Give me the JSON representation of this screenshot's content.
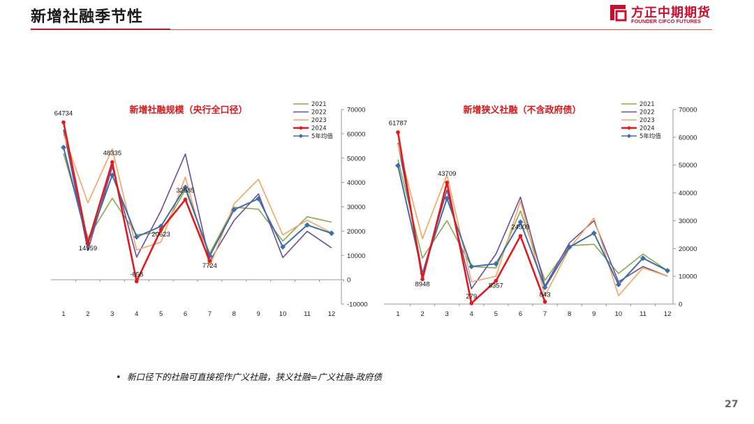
{
  "header": {
    "title": "新增社融季节性",
    "logo_cn": "方正中期期货",
    "logo_en": "FOUNDER CIFCO FUTURES",
    "accent": "#c8102e"
  },
  "footer": {
    "note": "新口径下的社融可直接视作广义社融，狭义社融=广义社融-政府债",
    "page_number": "27"
  },
  "chart_data": [
    {
      "type": "line",
      "title": "新增社融规模（央行全口径）",
      "categories": [
        "1",
        "2",
        "3",
        "4",
        "5",
        "6",
        "7",
        "8",
        "9",
        "10",
        "11",
        "12"
      ],
      "ylim": [
        -10000,
        70000
      ],
      "yticks": [
        -10000,
        0,
        10000,
        20000,
        30000,
        40000,
        50000,
        60000,
        70000
      ],
      "ytick_labels": [
        "-10000",
        "0",
        "10000",
        "20000",
        "30000",
        "40000",
        "50000",
        "60000",
        "70000"
      ],
      "legend_position": "top-right",
      "series": [
        {
          "name": "2021",
          "color": "#8aa850",
          "values": [
            51900,
            17100,
            33500,
            18500,
            19500,
            37000,
            10800,
            29800,
            29000,
            15900,
            25900,
            23700
          ]
        },
        {
          "name": "2022",
          "color": "#6a4c9c",
          "values": [
            61700,
            12000,
            46500,
            9300,
            28400,
            51700,
            7600,
            24400,
            35300,
            9100,
            19900,
            13100
          ]
        },
        {
          "name": "2023",
          "color": "#f4a460",
          "values": [
            59900,
            31600,
            53800,
            12200,
            15500,
            42200,
            5400,
            31200,
            41300,
            18400,
            24500,
            19300
          ]
        },
        {
          "name": "2024",
          "color": "#e31a1c",
          "values": [
            64734,
            14959,
            48335,
            -658,
            20623,
            32985,
            7724,
            null,
            null,
            null,
            null,
            null
          ]
        },
        {
          "name": "5年均值",
          "color": "#3d6ea8",
          "values": [
            54400,
            14800,
            43000,
            17600,
            22000,
            38000,
            9800,
            28800,
            33300,
            13500,
            22500,
            19100
          ]
        }
      ],
      "data_labels": [
        {
          "x": "1",
          "value": 64734,
          "text": "64734"
        },
        {
          "x": "2",
          "value": 14959,
          "text": "14959"
        },
        {
          "x": "3",
          "value": 48335,
          "text": "48335"
        },
        {
          "x": "4",
          "value": -658,
          "text": "-658"
        },
        {
          "x": "5",
          "value": 20623,
          "text": "20623"
        },
        {
          "x": "6",
          "value": 32985,
          "text": "32985"
        },
        {
          "x": "7",
          "value": 7724,
          "text": "7724"
        }
      ]
    },
    {
      "type": "line",
      "title": "新增狭义社融（不含政府债）",
      "categories": [
        "1",
        "2",
        "3",
        "4",
        "5",
        "6",
        "7",
        "8",
        "9",
        "10",
        "11",
        "12"
      ],
      "ylim": [
        0,
        70000
      ],
      "yticks": [
        0,
        10000,
        20000,
        30000,
        40000,
        50000,
        60000,
        70000
      ],
      "ytick_labels": [
        "0",
        "10000",
        "20000",
        "30000",
        "40000",
        "50000",
        "60000",
        "70000"
      ],
      "legend_position": "top-right",
      "series": [
        {
          "name": "2021",
          "color": "#8aa850",
          "values": [
            52000,
            16500,
            30000,
            13500,
            13000,
            33500,
            8500,
            21000,
            21500,
            11000,
            18000,
            12000
          ]
        },
        {
          "name": "2022",
          "color": "#6a4c9c",
          "values": [
            58000,
            11000,
            41000,
            5500,
            18000,
            38500,
            6500,
            22000,
            30000,
            8000,
            13500,
            10000
          ]
        },
        {
          "name": "2023",
          "color": "#f4a460",
          "values": [
            57500,
            23500,
            46500,
            8000,
            10000,
            37000,
            3000,
            20000,
            31000,
            3000,
            13000,
            10000
          ]
        },
        {
          "name": "2024",
          "color": "#e31a1c",
          "values": [
            61787,
            8948,
            43709,
            279,
            8357,
            24509,
            843,
            null,
            null,
            null,
            null,
            null
          ]
        },
        {
          "name": "5年均值",
          "color": "#3d6ea8",
          "values": [
            49800,
            11000,
            38000,
            13500,
            14500,
            29500,
            6000,
            20500,
            25500,
            7000,
            16500,
            12000
          ]
        }
      ],
      "data_labels": [
        {
          "x": "1",
          "value": 61787,
          "text": "61787"
        },
        {
          "x": "2",
          "value": 8948,
          "text": "8948"
        },
        {
          "x": "3",
          "value": 43709,
          "text": "43709"
        },
        {
          "x": "4",
          "value": 279,
          "text": "279"
        },
        {
          "x": "5",
          "value": 8357,
          "text": "8357"
        },
        {
          "x": "6",
          "value": 24509,
          "text": "24509"
        },
        {
          "x": "7",
          "value": 843,
          "text": "843"
        }
      ]
    }
  ]
}
